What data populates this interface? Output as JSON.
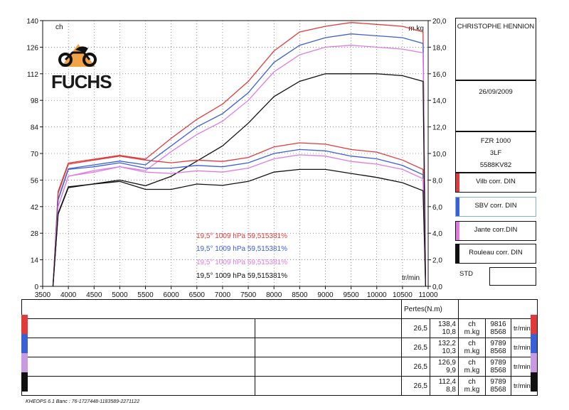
{
  "owner": "CHRISTOPHE HENNION",
  "date": "26/09/2009",
  "vehicle": {
    "model": "FZR 1000",
    "code": "3LF",
    "plate": "5588KV82"
  },
  "legend": [
    {
      "label": "Vilb corr. DIN",
      "color": "#e03a3a"
    },
    {
      "label": "SBV corr. DIN",
      "color": "#3b5fd4"
    },
    {
      "label": "Jante corr.DIN",
      "color": "#e07ae0"
    },
    {
      "label": "Rouleau corr. DIN",
      "color": "#111111"
    }
  ],
  "std_label": "STD",
  "logo_text": "FUCHS",
  "conditions": [
    {
      "text": "19,5°  1009 hPa  59,515381%",
      "color": "#e03a3a"
    },
    {
      "text": "19,5°  1009 hPa  59,515381%",
      "color": "#3b5fd4"
    },
    {
      "text": "19,5°  1009 hPa  59,515381%",
      "color": "#e07ae0"
    },
    {
      "text": "19,5°  1009 hPa  59,515381%",
      "color": "#111111"
    }
  ],
  "results_header": "Pertes(N.m)",
  "results": [
    {
      "color": "#e03a3a",
      "loss": "26,5",
      "power": "138,4",
      "torque": "10,8",
      "unit_p": "ch",
      "unit_t": "m.kg",
      "rpm_p": "9816",
      "rpm_t": "8568",
      "rpm_unit": "tr/min"
    },
    {
      "color": "#3b5fd4",
      "loss": "26,5",
      "power": "132,2",
      "torque": "10,3",
      "unit_p": "ch",
      "unit_t": "m.kg",
      "rpm_p": "9789",
      "rpm_t": "8568",
      "rpm_unit": "tr/min"
    },
    {
      "color": "#c89ae0",
      "loss": "26,5",
      "power": "126,9",
      "torque": "9,9",
      "unit_p": "ch",
      "unit_t": "m.kg",
      "rpm_p": "9789",
      "rpm_t": "8568",
      "rpm_unit": "tr/min"
    },
    {
      "color": "#111111",
      "loss": "26,5",
      "power": "112,4",
      "torque": "8,8",
      "unit_p": "ch",
      "unit_t": "m.kg",
      "rpm_p": "9789",
      "rpm_t": "8568",
      "rpm_unit": "tr/min"
    }
  ],
  "footer": "KHEOPS 6.1  Banc : 76-1727448-1183589-2271122",
  "chart_data": {
    "type": "line",
    "left_axis_label": "ch",
    "right_axis_label": "m.kg",
    "x_axis_label": "tr/min",
    "xlim": [
      3500,
      11000
    ],
    "x_ticks": [
      3500,
      4000,
      4500,
      5000,
      5500,
      6000,
      6500,
      7000,
      7500,
      8000,
      8500,
      9000,
      9500,
      10000,
      10500,
      11000
    ],
    "ylim_left": [
      0,
      140
    ],
    "y_ticks_left": [
      0,
      14,
      28,
      42,
      56,
      70,
      84,
      98,
      112,
      126,
      140
    ],
    "ylim_right": [
      0,
      20
    ],
    "y_ticks_right": [
      "0,0",
      "2,0",
      "4,0",
      "6,0",
      "8,0",
      "10,0",
      "12,0",
      "14,0",
      "16,0",
      "18,0",
      "20,0"
    ],
    "grid": true,
    "x": [
      3700,
      3800,
      4000,
      4500,
      5000,
      5500,
      6000,
      6500,
      7000,
      7500,
      8000,
      8500,
      9000,
      9500,
      10000,
      10500,
      10900,
      10950
    ],
    "power_series": [
      {
        "color": "#e03a3a",
        "values": [
          0,
          50,
          65,
          67,
          69,
          67,
          78,
          88,
          96,
          108,
          124,
          134,
          137,
          139,
          138,
          137,
          134,
          0
        ]
      },
      {
        "color": "#3b5fd4",
        "values": [
          0,
          46,
          62,
          64,
          66,
          64,
          74,
          84,
          91,
          102,
          118,
          127,
          131,
          133,
          132,
          131,
          128,
          0
        ]
      },
      {
        "color": "#e07ae0",
        "values": [
          0,
          42,
          58,
          61,
          63,
          61,
          71,
          80,
          87,
          98,
          113,
          122,
          126,
          127,
          126,
          125,
          123,
          0
        ]
      },
      {
        "color": "#111111",
        "values": [
          0,
          38,
          52,
          54,
          56,
          53,
          58,
          66,
          74,
          86,
          100,
          108,
          112,
          112,
          112,
          111,
          108,
          0
        ]
      }
    ],
    "torque_series": [
      {
        "color": "#e03a3a",
        "values": [
          0,
          7.0,
          9.2,
          9.5,
          9.8,
          9.5,
          9.3,
          9.5,
          9.4,
          9.7,
          10.5,
          10.8,
          10.7,
          10.3,
          10.1,
          9.5,
          8.8,
          0
        ]
      },
      {
        "color": "#3b5fd4",
        "values": [
          0,
          6.5,
          8.8,
          9.0,
          9.3,
          8.9,
          8.9,
          9.1,
          9.0,
          9.3,
          10.0,
          10.3,
          10.2,
          9.8,
          9.6,
          9.1,
          8.4,
          0
        ]
      },
      {
        "color": "#e07ae0",
        "values": [
          0,
          6.0,
          8.3,
          8.6,
          9.0,
          8.6,
          8.5,
          8.7,
          8.6,
          8.9,
          9.6,
          9.9,
          9.8,
          9.4,
          9.2,
          8.8,
          8.1,
          0
        ]
      },
      {
        "color": "#111111",
        "values": [
          0,
          5.5,
          7.5,
          7.7,
          7.9,
          7.3,
          7.3,
          7.7,
          7.6,
          7.9,
          8.6,
          8.8,
          8.8,
          8.5,
          8.2,
          7.8,
          7.2,
          0
        ]
      }
    ]
  }
}
